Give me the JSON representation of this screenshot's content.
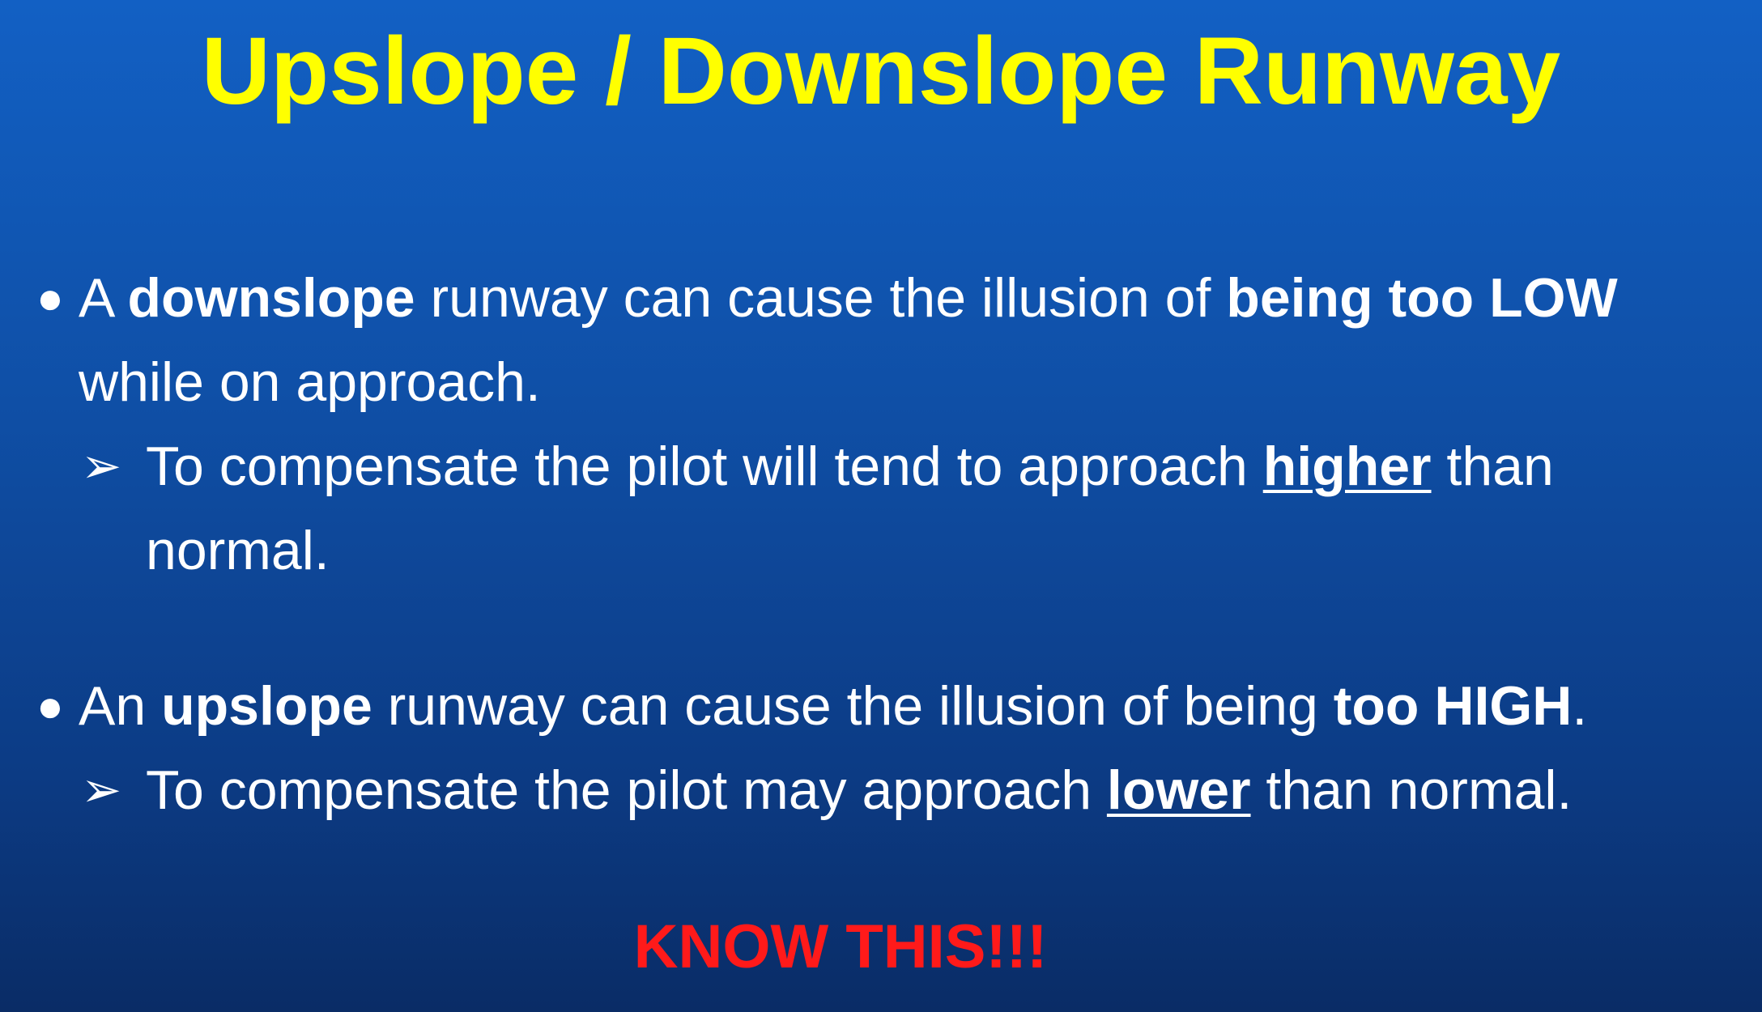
{
  "title": "Upslope / Downslope Runway",
  "bullet1": {
    "marker": "●",
    "p1": "A ",
    "b1": "downslope",
    "p2": " runway can cause the illusion of ",
    "b2": "being too LOW",
    "p3": " while on approach."
  },
  "sub1": {
    "marker": "➢",
    "p1": "To compensate the pilot will tend to approach ",
    "u1": "higher",
    "p2": " than normal."
  },
  "bullet2": {
    "marker": "●",
    "p1": "An ",
    "b1": "upslope",
    "p2": " runway can cause the illusion of being ",
    "b2": "too HIGH",
    "p3": "."
  },
  "sub2": {
    "marker": "➢",
    "p1": "To compensate the pilot may approach ",
    "u1": "lower",
    "p2": " than normal."
  },
  "callout": "KNOW THIS!!!",
  "colors": {
    "title": "#ffff00",
    "text": "#ffffff",
    "callout": "#ff1a1a",
    "background_top": "#1260c4",
    "background_bottom": "#0a2c66"
  }
}
